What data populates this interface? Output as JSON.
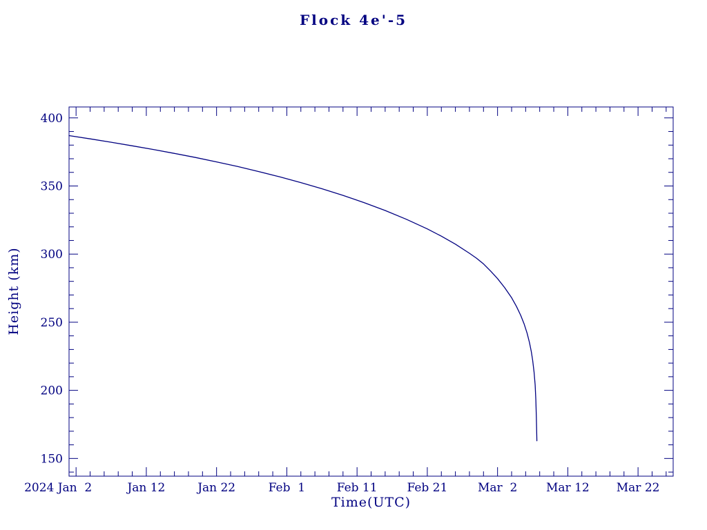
{
  "page": {
    "background": "#ffffff",
    "accent_color": "#000080"
  },
  "chart_data": {
    "type": "line",
    "title": "Flock 4e'-5",
    "xlabel": "Time(UTC)",
    "ylabel": "Height (km)",
    "color": "#000080",
    "x_unit": "days since 2024-01-01",
    "xlim": [
      0,
      86
    ],
    "ylim": [
      137,
      408
    ],
    "grid": false,
    "legend": "none",
    "x_ticks": [
      {
        "value": 1,
        "label": "2024 Jan  2",
        "shift": -26
      },
      {
        "value": 11,
        "label": "Jan 12"
      },
      {
        "value": 21,
        "label": "Jan 22"
      },
      {
        "value": 31,
        "label": "Feb  1"
      },
      {
        "value": 41,
        "label": "Feb 11"
      },
      {
        "value": 51,
        "label": "Feb 21"
      },
      {
        "value": 61,
        "label": "Mar  2"
      },
      {
        "value": 71,
        "label": "Mar 12"
      },
      {
        "value": 81,
        "label": "Mar 22"
      }
    ],
    "y_ticks": [
      {
        "value": 150,
        "label": "150"
      },
      {
        "value": 200,
        "label": "200"
      },
      {
        "value": 250,
        "label": "250"
      },
      {
        "value": 300,
        "label": "300"
      },
      {
        "value": 350,
        "label": "350"
      },
      {
        "value": 400,
        "label": "400"
      }
    ],
    "x_minor_step": 2,
    "y_minor_step": 10,
    "series": [
      {
        "name": "Flock 4e'-5 height",
        "points": [
          [
            0,
            387
          ],
          [
            3,
            384.6
          ],
          [
            6,
            382.1
          ],
          [
            9,
            379.5
          ],
          [
            12,
            376.8
          ],
          [
            15,
            373.9
          ],
          [
            18,
            370.9
          ],
          [
            21,
            367.7
          ],
          [
            24,
            364.3
          ],
          [
            27,
            360.6
          ],
          [
            30,
            356.7
          ],
          [
            33,
            352.5
          ],
          [
            36,
            348.0
          ],
          [
            39,
            343.1
          ],
          [
            42,
            337.8
          ],
          [
            45,
            332.0
          ],
          [
            48,
            325.6
          ],
          [
            51,
            318.5
          ],
          [
            53,
            313.2
          ],
          [
            55,
            307.3
          ],
          [
            57,
            300.6
          ],
          [
            58,
            297.0
          ],
          [
            59,
            292.8
          ],
          [
            60,
            287.6
          ],
          [
            61,
            282.0
          ],
          [
            62,
            275.5
          ],
          [
            63,
            268.0
          ],
          [
            63.7,
            261.5
          ],
          [
            64.3,
            255.0
          ],
          [
            64.8,
            248.5
          ],
          [
            65.2,
            242.0
          ],
          [
            65.55,
            235.0
          ],
          [
            65.8,
            228.5
          ],
          [
            66.0,
            222.0
          ],
          [
            66.2,
            213.5
          ],
          [
            66.35,
            204.0
          ],
          [
            66.45,
            193.0
          ],
          [
            66.52,
            181.0
          ],
          [
            66.57,
            170.0
          ],
          [
            66.6,
            163.0
          ]
        ]
      }
    ]
  }
}
